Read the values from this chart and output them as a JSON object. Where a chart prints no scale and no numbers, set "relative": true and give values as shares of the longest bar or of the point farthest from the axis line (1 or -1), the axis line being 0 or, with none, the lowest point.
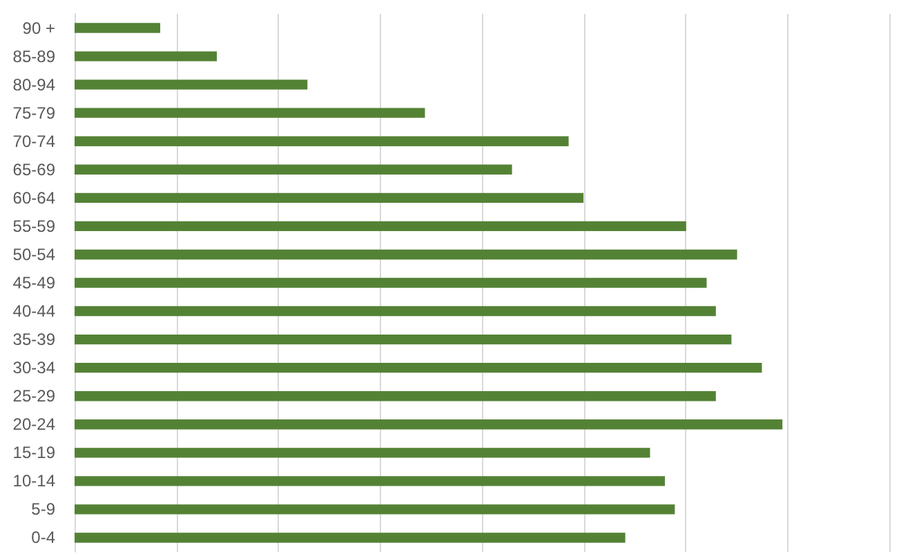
{
  "chart_data": {
    "type": "bar",
    "orientation": "horizontal",
    "relative": true,
    "categories": [
      "90 +",
      "85-89",
      "80-94",
      "75-79",
      "70-74",
      "65-69",
      "60-64",
      "55-59",
      "50-54",
      "45-49",
      "40-44",
      "35-39",
      "30-34",
      "25-29",
      "20-24",
      "15-19",
      "10-14",
      "5-9",
      "0-4"
    ],
    "values": [
      0.121,
      0.201,
      0.329,
      0.495,
      0.698,
      0.618,
      0.719,
      0.864,
      0.936,
      0.893,
      0.906,
      0.928,
      0.971,
      0.906,
      1,
      0.813,
      0.834,
      0.848,
      0.778
    ],
    "color": "#548235",
    "grid": "x"
  }
}
